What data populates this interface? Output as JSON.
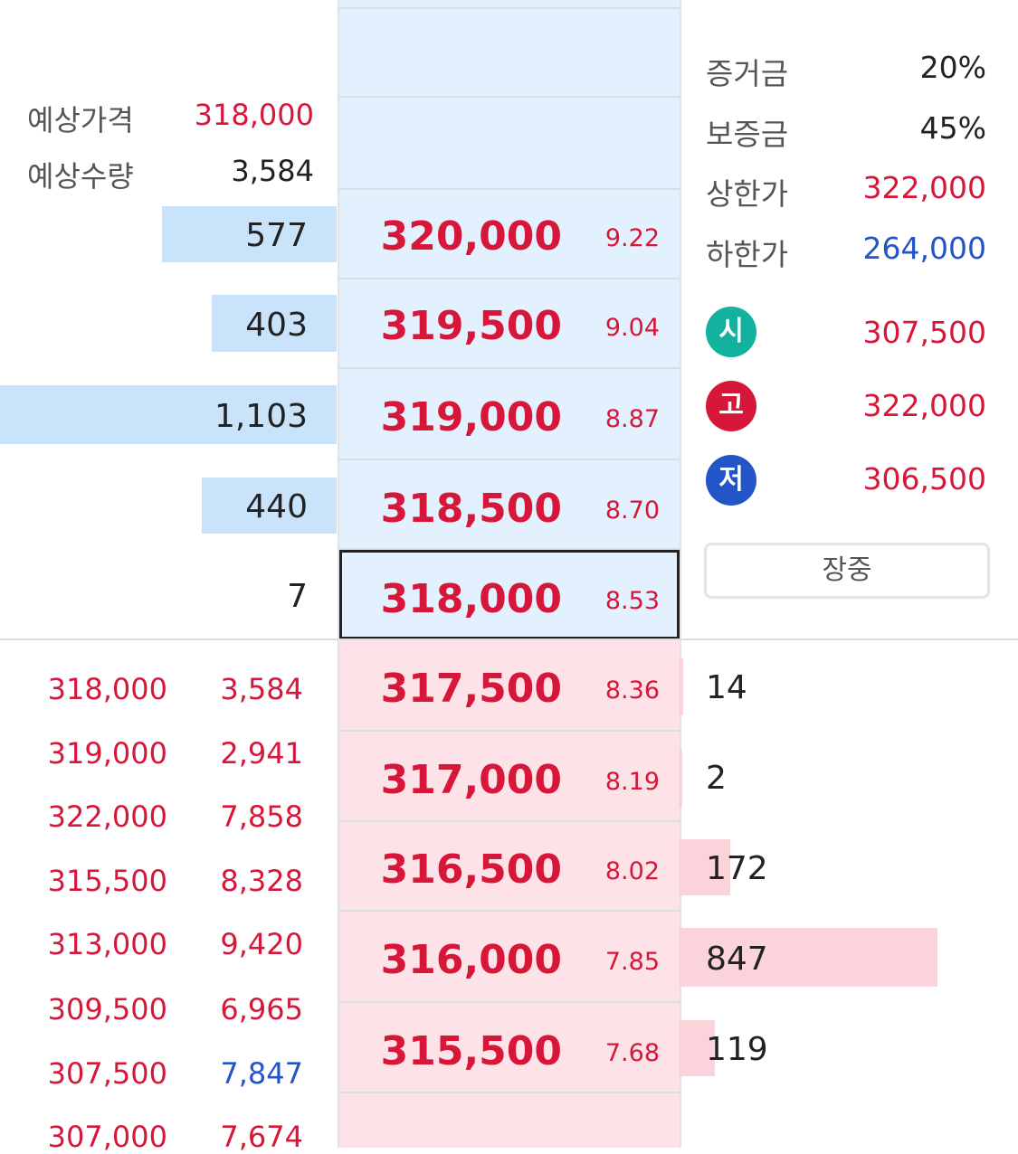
{
  "expected": {
    "price_label": "예상가격",
    "price_value": "318,000",
    "qty_label": "예상수량",
    "qty_value": "3,584"
  },
  "info": {
    "margin_label": "증거금",
    "margin_value": "20%",
    "deposit_label": "보증금",
    "deposit_value": "45%",
    "upper_label": "상한가",
    "upper_value": "322,000",
    "lower_label": "하한가",
    "lower_value": "264,000",
    "open_badge": "시",
    "open_value": "307,500",
    "high_badge": "고",
    "high_value": "322,000",
    "low_badge": "저",
    "low_value": "306,500",
    "session_button": "장중"
  },
  "colors": {
    "up": "#d7173a",
    "down": "#2355c8",
    "ask_bg": "#e3f0fd",
    "bid_bg": "#fde3e7",
    "ask_bar": "#c9e3fb",
    "bid_bar": "#fbd3da",
    "open_badge": "#13b29e",
    "high_badge": "#d7173a",
    "low_badge": "#2355c8"
  },
  "asks": [
    {
      "price": "320,000",
      "pct": "9.22",
      "volume": "577",
      "bar_fraction": 0.52
    },
    {
      "price": "319,500",
      "pct": "9.04",
      "volume": "403",
      "bar_fraction": 0.37
    },
    {
      "price": "319,000",
      "pct": "8.87",
      "volume": "1,103",
      "bar_fraction": 1.0
    },
    {
      "price": "318,500",
      "pct": "8.70",
      "volume": "440",
      "bar_fraction": 0.4
    },
    {
      "price": "318,000",
      "pct": "8.53",
      "volume": "7",
      "bar_fraction": 0
    }
  ],
  "bids": [
    {
      "price": "317,500",
      "pct": "8.36",
      "volume": "14",
      "bar_fraction": 0.017
    },
    {
      "price": "317,000",
      "pct": "8.19",
      "volume": "2",
      "bar_fraction": 0.002
    },
    {
      "price": "316,500",
      "pct": "8.02",
      "volume": "172",
      "bar_fraction": 0.2
    },
    {
      "price": "316,000",
      "pct": "7.85",
      "volume": "847",
      "bar_fraction": 1.0
    },
    {
      "price": "315,500",
      "pct": "7.68",
      "volume": "119",
      "bar_fraction": 0.14
    }
  ],
  "trades": [
    {
      "price": "318,000",
      "qty": "3,584",
      "qty_color": "red"
    },
    {
      "price": "319,000",
      "qty": "2,941",
      "qty_color": "red"
    },
    {
      "price": "322,000",
      "qty": "7,858",
      "qty_color": "red"
    },
    {
      "price": "315,500",
      "qty": "8,328",
      "qty_color": "red"
    },
    {
      "price": "313,000",
      "qty": "9,420",
      "qty_color": "red"
    },
    {
      "price": "309,500",
      "qty": "6,965",
      "qty_color": "red"
    },
    {
      "price": "307,500",
      "qty": "7,847",
      "qty_color": "blue"
    },
    {
      "price": "307,000",
      "qty": "7,674",
      "qty_color": "red"
    }
  ]
}
